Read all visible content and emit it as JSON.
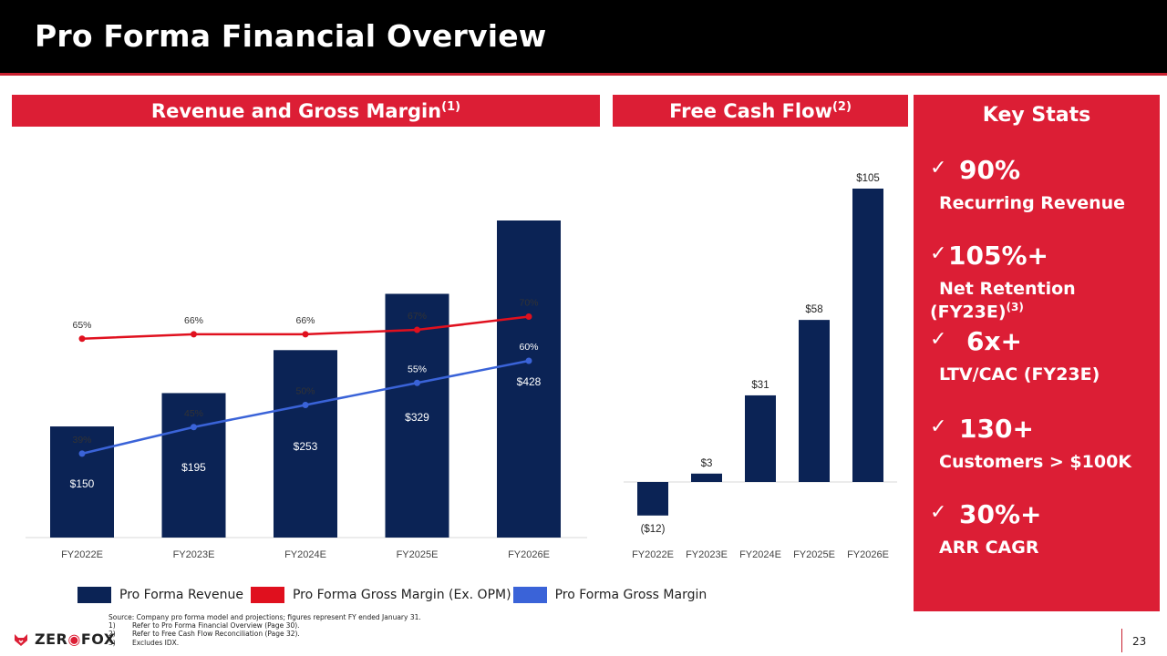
{
  "page": {
    "title": "Pro Forma Financial Overview",
    "page_number": "23"
  },
  "sections": {
    "revenue_title": "Revenue and Gross Margin",
    "revenue_sup": "(1)",
    "fcf_title": "Free Cash Flow",
    "fcf_sup": "(2)"
  },
  "key_stats": {
    "title": "Key Stats",
    "check_icon": "✓",
    "items": [
      {
        "value": "90%",
        "label": "Recurring Revenue",
        "sup": ""
      },
      {
        "value": "105%+",
        "label": "Net Retention",
        "label2": "(FY23E)",
        "sup": "(3)"
      },
      {
        "value": "6x+",
        "label": "LTV/CAC (FY23E)",
        "sup": ""
      },
      {
        "value": "130+",
        "label": "Customers > $100K",
        "sup": ""
      },
      {
        "value": "30%+",
        "label": "ARR CAGR",
        "sup": ""
      }
    ]
  },
  "legend": {
    "items": [
      {
        "label": "Pro Forma Revenue",
        "color": "#0b2355"
      },
      {
        "label": "Pro Forma Gross Margin (Ex. OPM)",
        "color": "#e0101e"
      },
      {
        "label": "Pro Forma Gross Margin",
        "color": "#3a63d8"
      }
    ]
  },
  "footnotes": {
    "source": "Source:  Company pro forma  model  and projections;   figures represent FY ended January 31.",
    "notes": [
      {
        "num": "1)",
        "text": "Refer to Pro Forma Financial Overview (Page 30)."
      },
      {
        "num": "2)",
        "text": "Refer to Free Cash Flow Reconciliation (Page 32)."
      },
      {
        "num": "3)",
        "text": "Excludes IDX."
      }
    ]
  },
  "logo": {
    "text_a": "ZER",
    "text_b": "FOX"
  },
  "colors": {
    "navy": "#0b2355",
    "red": "#e0101e",
    "blue": "#3a63d8",
    "brand_red": "#dc1e35"
  },
  "chart_data": [
    {
      "type": "bar",
      "categories": [
        "FY2022E",
        "FY2023E",
        "FY2024E",
        "FY2025E",
        "FY2026E"
      ],
      "series": [
        {
          "name": "Pro Forma Revenue",
          "type": "bar",
          "values": [
            150,
            195,
            253,
            329,
            428
          ],
          "labels": [
            "$150",
            "$195",
            "$253",
            "$329",
            "$428"
          ]
        },
        {
          "name": "Pro Forma Gross Margin (Ex. OPM)",
          "type": "line",
          "values": [
            65,
            66,
            66,
            67,
            70
          ],
          "labels": [
            "65%",
            "66%",
            "66%",
            "67%",
            "70%"
          ]
        },
        {
          "name": "Pro Forma Gross Margin",
          "type": "line",
          "values": [
            39,
            45,
            50,
            55,
            60
          ],
          "labels": [
            "39%",
            "45%",
            "50%",
            "55%",
            "60%"
          ]
        }
      ],
      "title": "Revenue and Gross Margin"
    },
    {
      "type": "bar",
      "categories": [
        "FY2022E",
        "FY2023E",
        "FY2024E",
        "FY2025E",
        "FY2026E"
      ],
      "values": [
        -12,
        3,
        31,
        58,
        105
      ],
      "labels": [
        "($12)",
        "$3",
        "$31",
        "$58",
        "$105"
      ],
      "title": "Free Cash Flow"
    }
  ]
}
